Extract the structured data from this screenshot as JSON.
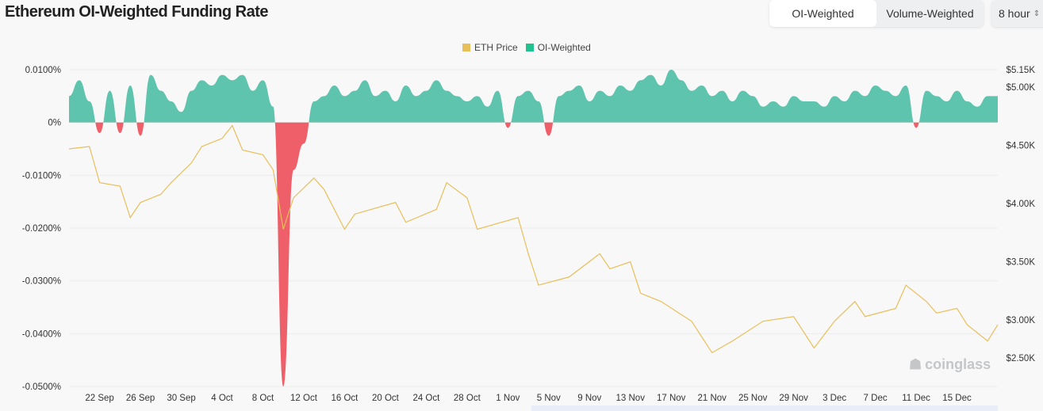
{
  "header": {
    "title": "Ethereum OI-Weighted Funding Rate",
    "tabs": [
      {
        "label": "OI-Weighted",
        "active": true
      },
      {
        "label": "Volume-Weighted",
        "active": false
      }
    ],
    "interval": "8 hour"
  },
  "watermark": "coinglass",
  "colors": {
    "price": "#e8bf5a",
    "positive": "#5ec4ae",
    "negative": "#ef5f69",
    "legend_green": "#1fc38f"
  },
  "chart_data": {
    "type": "area",
    "title": "",
    "legend": [
      {
        "name": "ETH Price",
        "color": "#e8bf5a"
      },
      {
        "name": "OI-Weighted",
        "color": "#1fc38f"
      }
    ],
    "legend_position": "top-center",
    "left_axis": {
      "ylim": [
        -0.05,
        0.01
      ],
      "ticks": [
        "0.0100%",
        "0%",
        "-0.0100%",
        "-0.0200%",
        "-0.0300%",
        "-0.0400%",
        "-0.0500%"
      ],
      "tick_values": [
        0.01,
        0,
        -0.01,
        -0.02,
        -0.03,
        -0.04,
        -0.05
      ]
    },
    "right_axis": {
      "ylim": [
        2.43,
        5.15
      ],
      "ticks": [
        "$5.15K",
        "$5.00K",
        "$4.50K",
        "$4.00K",
        "$3.50K",
        "$3.00K",
        "$2.50K"
      ],
      "tick_values": [
        5.15,
        5.0,
        4.5,
        4.0,
        3.5,
        3.0,
        2.5
      ]
    },
    "x_ticks": [
      "22 Sep",
      "26 Sep",
      "30 Sep",
      "4 Oct",
      "8 Oct",
      "12 Oct",
      "16 Oct",
      "20 Oct",
      "24 Oct",
      "28 Oct",
      "1 Nov",
      "5 Nov",
      "9 Nov",
      "13 Nov",
      "17 Nov",
      "21 Nov",
      "25 Nov",
      "29 Nov",
      "3 Dec",
      "7 Dec",
      "11 Dec",
      "15 Dec"
    ],
    "x_range": [
      "19 Sep",
      "19 Dec"
    ],
    "grid": "horizontal",
    "series": [
      {
        "name": "OI-Weighted",
        "unit": "%",
        "start": "19 Sep",
        "step_days": 1,
        "values": [
          0.005,
          0.008,
          0.004,
          -0.002,
          0.006,
          -0.002,
          0.007,
          -0.0025,
          0.009,
          0.006,
          0.004,
          0.002,
          0.006,
          0.008,
          0.007,
          0.009,
          0.008,
          0.009,
          0.006,
          0.008,
          0.003,
          -0.05,
          -0.009,
          -0.004,
          0.004,
          0.005,
          0.007,
          0.005,
          0.006,
          0.008,
          0.005,
          0.006,
          0.004,
          0.007,
          0.005,
          0.006,
          0.008,
          0.006,
          0.005,
          0.004,
          0.005,
          0.003,
          0.006,
          -0.001,
          0.005,
          0.006,
          0.004,
          -0.0025,
          0.005,
          0.006,
          0.007,
          0.004,
          0.006,
          0.005,
          0.007,
          0.006,
          0.008,
          0.009,
          0.007,
          0.01,
          0.008,
          0.006,
          0.007,
          0.005,
          0.006,
          0.004,
          0.006,
          0.005,
          0.003,
          0.004,
          0.003,
          0.005,
          0.004,
          0.004,
          0.003,
          0.005,
          0.004,
          0.006,
          0.005,
          0.007,
          0.006,
          0.005,
          0.007,
          -0.001,
          0.006,
          0.005,
          0.004,
          0.006,
          0.004,
          0.003,
          0.005,
          0.005
        ]
      },
      {
        "name": "ETH Price",
        "unit": "$K",
        "points": [
          [
            "19 Sep",
            4.47
          ],
          [
            "21 Sep",
            4.49
          ],
          [
            "22 Sep",
            4.18
          ],
          [
            "24 Sep",
            4.15
          ],
          [
            "25 Sep",
            3.88
          ],
          [
            "26 Sep",
            4.01
          ],
          [
            "28 Sep",
            4.08
          ],
          [
            "29 Sep",
            4.18
          ],
          [
            "1 Oct",
            4.35
          ],
          [
            "2 Oct",
            4.49
          ],
          [
            "4 Oct",
            4.56
          ],
          [
            "5 Oct",
            4.67
          ],
          [
            "6 Oct",
            4.46
          ],
          [
            "8 Oct",
            4.42
          ],
          [
            "9 Oct",
            4.29
          ],
          [
            "10 Oct",
            3.78
          ],
          [
            "11 Oct",
            4.05
          ],
          [
            "13 Oct",
            4.22
          ],
          [
            "14 Oct",
            4.12
          ],
          [
            "16 Oct",
            3.78
          ],
          [
            "17 Oct",
            3.91
          ],
          [
            "21 Oct",
            4.01
          ],
          [
            "22 Oct",
            3.84
          ],
          [
            "25 Oct",
            3.95
          ],
          [
            "26 Oct",
            4.18
          ],
          [
            "28 Oct",
            4.05
          ],
          [
            "29 Oct",
            3.78
          ],
          [
            "2 Nov",
            3.88
          ],
          [
            "3 Nov",
            3.57
          ],
          [
            "4 Nov",
            3.3
          ],
          [
            "7 Nov",
            3.37
          ],
          [
            "10 Nov",
            3.57
          ],
          [
            "11 Nov",
            3.44
          ],
          [
            "13 Nov",
            3.5
          ],
          [
            "14 Nov",
            3.23
          ],
          [
            "16 Nov",
            3.16
          ],
          [
            "19 Nov",
            2.99
          ],
          [
            "21 Nov",
            2.72
          ],
          [
            "23 Nov",
            2.82
          ],
          [
            "26 Nov",
            2.99
          ],
          [
            "29 Nov",
            3.03
          ],
          [
            "1 Dec",
            2.76
          ],
          [
            "3 Dec",
            2.99
          ],
          [
            "5 Dec",
            3.16
          ],
          [
            "6 Dec",
            3.03
          ],
          [
            "9 Dec",
            3.1
          ],
          [
            "10 Dec",
            3.3
          ],
          [
            "12 Dec",
            3.16
          ],
          [
            "13 Dec",
            3.06
          ],
          [
            "15 Dec",
            3.1
          ],
          [
            "16 Dec",
            2.96
          ],
          [
            "18 Dec",
            2.82
          ],
          [
            "19 Dec",
            2.96
          ]
        ]
      }
    ]
  }
}
